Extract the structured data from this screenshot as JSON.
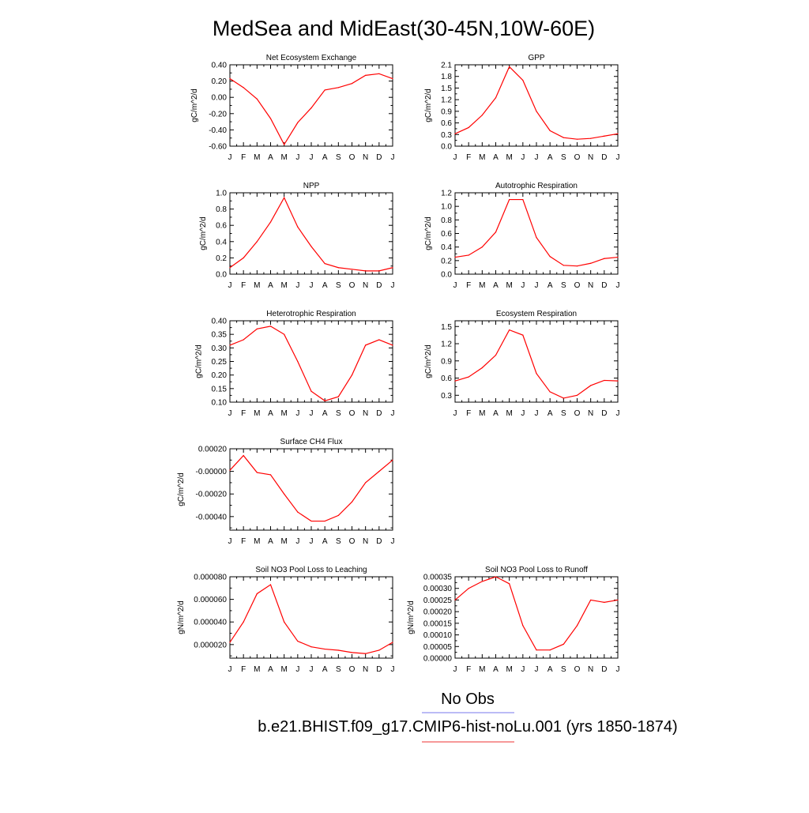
{
  "title": "MedSea and MidEast(30-45N,10W-60E)",
  "legend": {
    "obs_label": "No Obs",
    "obs_color": "#7777ee",
    "model_label": "b.e21.BHIST.f09_g17.CMIP6-hist-noLu.001 (yrs 1850-1874)",
    "model_color": "#ee3333"
  },
  "colors": {
    "series": "#ff0000",
    "axis": "#000000"
  },
  "chart_data": [
    {
      "type": "line",
      "title": "Net Ecosystem Exchange",
      "ylabel": "gC/m^2/d",
      "xlabel": "",
      "categories": [
        "J",
        "F",
        "M",
        "A",
        "M",
        "J",
        "J",
        "A",
        "S",
        "O",
        "N",
        "D",
        "J"
      ],
      "values": [
        0.23,
        0.12,
        -0.02,
        -0.26,
        -0.58,
        -0.31,
        -0.13,
        0.09,
        0.12,
        0.17,
        0.27,
        0.29,
        0.23
      ],
      "ylim": [
        -0.6,
        0.4
      ],
      "yticks": [
        -0.6,
        -0.4,
        -0.2,
        0.0,
        0.2,
        0.4
      ],
      "ytick_labels": [
        "-0.60",
        "-0.40",
        "-0.20",
        "0.00",
        "0.20",
        "0.40"
      ],
      "grid": false
    },
    {
      "type": "line",
      "title": "GPP",
      "ylabel": "gC/m^2/d",
      "xlabel": "",
      "categories": [
        "J",
        "F",
        "M",
        "A",
        "M",
        "J",
        "J",
        "A",
        "S",
        "O",
        "N",
        "D",
        "J"
      ],
      "values": [
        0.32,
        0.48,
        0.8,
        1.25,
        2.05,
        1.7,
        0.9,
        0.4,
        0.22,
        0.18,
        0.2,
        0.26,
        0.32
      ],
      "ylim": [
        0.0,
        2.1
      ],
      "yticks": [
        0.0,
        0.3,
        0.6,
        0.9,
        1.2,
        1.5,
        1.8,
        2.1
      ],
      "ytick_labels": [
        "0.0",
        "0.3",
        "0.6",
        "0.9",
        "1.2",
        "1.5",
        "1.8",
        "2.1"
      ],
      "grid": false
    },
    {
      "type": "line",
      "title": "NPP",
      "ylabel": "gC/m^2/d",
      "xlabel": "",
      "categories": [
        "J",
        "F",
        "M",
        "A",
        "M",
        "J",
        "J",
        "A",
        "S",
        "O",
        "N",
        "D",
        "J"
      ],
      "values": [
        0.08,
        0.2,
        0.4,
        0.64,
        0.94,
        0.58,
        0.34,
        0.13,
        0.08,
        0.06,
        0.04,
        0.04,
        0.08
      ],
      "ylim": [
        0.0,
        1.0
      ],
      "yticks": [
        0.0,
        0.2,
        0.4,
        0.6,
        0.8,
        1.0
      ],
      "ytick_labels": [
        "0.0",
        "0.2",
        "0.4",
        "0.6",
        "0.8",
        "1.0"
      ],
      "grid": false
    },
    {
      "type": "line",
      "title": "Autotrophic Respiration",
      "ylabel": "gC/m^2/d",
      "xlabel": "",
      "categories": [
        "J",
        "F",
        "M",
        "A",
        "M",
        "J",
        "J",
        "A",
        "S",
        "O",
        "N",
        "D",
        "J"
      ],
      "values": [
        0.25,
        0.28,
        0.4,
        0.62,
        1.1,
        1.1,
        0.54,
        0.26,
        0.13,
        0.12,
        0.16,
        0.23,
        0.25
      ],
      "ylim": [
        0.0,
        1.2
      ],
      "yticks": [
        0.0,
        0.2,
        0.4,
        0.6,
        0.8,
        1.0,
        1.2
      ],
      "ytick_labels": [
        "0.0",
        "0.2",
        "0.4",
        "0.6",
        "0.8",
        "1.0",
        "1.2"
      ],
      "grid": false
    },
    {
      "type": "line",
      "title": "Heterotrophic Respiration",
      "ylabel": "gC/m^2/d",
      "xlabel": "",
      "categories": [
        "J",
        "F",
        "M",
        "A",
        "M",
        "J",
        "J",
        "A",
        "S",
        "O",
        "N",
        "D",
        "J"
      ],
      "values": [
        0.31,
        0.33,
        0.37,
        0.38,
        0.35,
        0.25,
        0.14,
        0.105,
        0.12,
        0.2,
        0.31,
        0.33,
        0.31
      ],
      "ylim": [
        0.1,
        0.4
      ],
      "yticks": [
        0.1,
        0.15,
        0.2,
        0.25,
        0.3,
        0.35,
        0.4
      ],
      "ytick_labels": [
        "0.10",
        "0.15",
        "0.20",
        "0.25",
        "0.30",
        "0.35",
        "0.40"
      ],
      "grid": false
    },
    {
      "type": "line",
      "title": "Ecosystem Respiration",
      "ylabel": "gC/m^2/d",
      "xlabel": "",
      "categories": [
        "J",
        "F",
        "M",
        "A",
        "M",
        "J",
        "J",
        "A",
        "S",
        "O",
        "N",
        "D",
        "J"
      ],
      "values": [
        0.55,
        0.62,
        0.78,
        1.0,
        1.44,
        1.35,
        0.68,
        0.36,
        0.25,
        0.3,
        0.47,
        0.56,
        0.55
      ],
      "ylim": [
        0.18,
        1.6
      ],
      "yticks": [
        0.3,
        0.6,
        0.9,
        1.2,
        1.5
      ],
      "ytick_labels": [
        "0.3",
        "0.6",
        "0.9",
        "1.2",
        "1.5"
      ],
      "grid": false
    },
    {
      "type": "line",
      "title": "Surface CH4 Flux",
      "ylabel": "gC/m^2/d",
      "xlabel": "",
      "categories": [
        "J",
        "F",
        "M",
        "A",
        "M",
        "J",
        "J",
        "A",
        "S",
        "O",
        "N",
        "D",
        "J"
      ],
      "values": [
        1e-05,
        0.00014,
        -1e-05,
        -3e-05,
        -0.0002,
        -0.00036,
        -0.00044,
        -0.00044,
        -0.00039,
        -0.00027,
        -0.0001,
        -0.0,
        0.0001
      ],
      "ylim": [
        -0.00052,
        0.0002
      ],
      "yticks": [
        -0.0004,
        -0.0002,
        0.0,
        0.0002
      ],
      "ytick_labels": [
        "-0.00040",
        "-0.00020",
        "-0.00000",
        "0.00020"
      ],
      "grid": false
    },
    {
      "type": "line",
      "title": "Soil NO3 Pool Loss to Leaching",
      "ylabel": "gN/m^2/d",
      "xlabel": "",
      "categories": [
        "J",
        "F",
        "M",
        "A",
        "M",
        "J",
        "J",
        "A",
        "S",
        "O",
        "N",
        "D",
        "J"
      ],
      "values": [
        2.2e-05,
        4e-05,
        6.5e-05,
        7.3e-05,
        4e-05,
        2.3e-05,
        1.8e-05,
        1.6e-05,
        1.5e-05,
        1.3e-05,
        1.2e-05,
        1.5e-05,
        2.2e-05
      ],
      "ylim": [
        8e-06,
        8e-05
      ],
      "yticks": [
        2e-05,
        4e-05,
        6e-05,
        8e-05
      ],
      "ytick_labels": [
        "0.000020",
        "0.000040",
        "0.000060",
        "0.000080"
      ],
      "grid": false
    },
    {
      "type": "line",
      "title": "Soil NO3 Pool Loss to Runoff",
      "ylabel": "gN/m^2/d",
      "xlabel": "",
      "categories": [
        "J",
        "F",
        "M",
        "A",
        "M",
        "J",
        "J",
        "A",
        "S",
        "O",
        "N",
        "D",
        "J"
      ],
      "values": [
        0.00025,
        0.0003,
        0.00033,
        0.00035,
        0.00032,
        0.00014,
        3.5e-05,
        3.5e-05,
        6e-05,
        0.00014,
        0.00025,
        0.00024,
        0.00025
      ],
      "ylim": [
        0.0,
        0.00035
      ],
      "yticks": [
        0.0,
        5e-05,
        0.0001,
        0.00015,
        0.0002,
        0.00025,
        0.0003,
        0.00035
      ],
      "ytick_labels": [
        "0.00000",
        "0.00005",
        "0.00010",
        "0.00015",
        "0.00020",
        "0.00025",
        "0.00030",
        "0.00035"
      ],
      "grid": false
    }
  ]
}
